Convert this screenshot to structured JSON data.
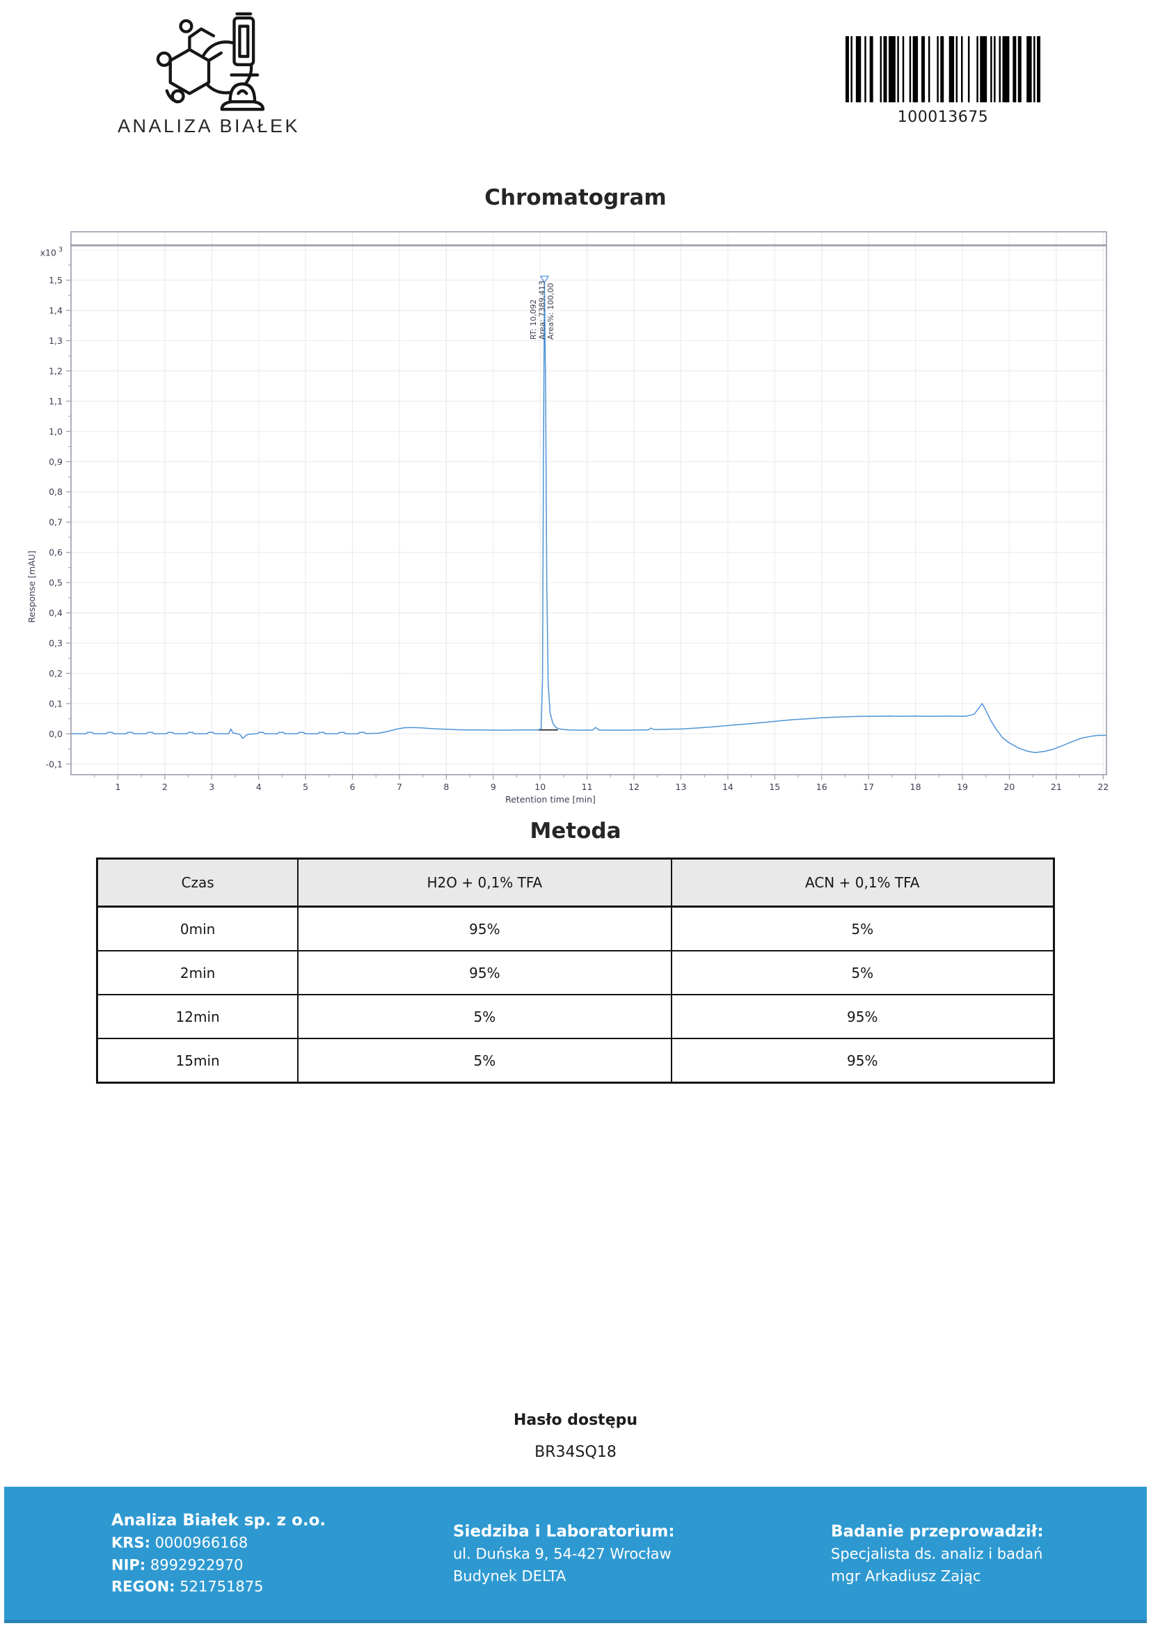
{
  "header": {
    "logo": {
      "brand": "ANALIZA BIAŁEK"
    },
    "barcode": {
      "value": "100013675",
      "bar_color": "#000000",
      "pattern": [
        2,
        1,
        1,
        2,
        3,
        2,
        1,
        2,
        2,
        4,
        1,
        1,
        2,
        1,
        4,
        1,
        1,
        2,
        1,
        3,
        1,
        1,
        3,
        2,
        2,
        2,
        1,
        4,
        1,
        1,
        2,
        3,
        3,
        1,
        1,
        2,
        1,
        3,
        1,
        4,
        1,
        1,
        4,
        2,
        1,
        1,
        1,
        2,
        1,
        1,
        4,
        2,
        2,
        1,
        2,
        3,
        3,
        1,
        1,
        1,
        2
      ]
    }
  },
  "chromatogram_section": {
    "title": "Chromatogram"
  },
  "chart_data": {
    "type": "line",
    "title": "Chromatogram",
    "xlabel": "Retention time [min]",
    "ylabel": "Response [mAU]",
    "scale_label": {
      "prefix": "x10",
      "exponent": "3"
    },
    "xlim": [
      0,
      22.07
    ],
    "ylim": [
      -0.135,
      1.66
    ],
    "x_ticks": [
      1,
      2,
      3,
      4,
      5,
      6,
      7,
      8,
      9,
      10,
      11,
      12,
      13,
      14,
      15,
      16,
      17,
      18,
      19,
      20,
      21,
      22
    ],
    "y_ticks": {
      "values": [
        1.5,
        1.4,
        1.3,
        1.2,
        1.1,
        1.0,
        0.9,
        0.8,
        0.7,
        0.6,
        0.5,
        0.4,
        0.3,
        0.2,
        0.1,
        0.0,
        -0.1
      ],
      "labels": [
        "1,5",
        "1,4",
        "1,3",
        "1,2",
        "1,1",
        "1,0",
        "0,9",
        "0,8",
        "0,7",
        "0,6",
        "0,5",
        "0,4",
        "0,3",
        "0,2",
        "0,1",
        "0,0",
        "-0,1"
      ]
    },
    "grid": true,
    "grid_color": "#ececef",
    "frame_line_y": 1.615,
    "trace_color": "#4e94d8",
    "axis_text_color": "#3d3d52",
    "integration_baseline": {
      "x1": 9.95,
      "x2": 10.38,
      "y": 0.013,
      "color": "#1a1a1a"
    },
    "peak": {
      "apex_x": 10.092,
      "apex_y": 1.49,
      "marker": "open-triangle-down",
      "labels": [
        "RT: 10,092",
        "Area: 7389,413",
        "Area%: 100,00"
      ]
    },
    "series": [
      {
        "name": "signal"
      }
    ],
    "points": [
      [
        0,
        0
      ],
      [
        0.32,
        0
      ],
      [
        0.35,
        0.005
      ],
      [
        0.45,
        0.005
      ],
      [
        0.48,
        0
      ],
      [
        0.75,
        0
      ],
      [
        0.78,
        0.005
      ],
      [
        0.88,
        0.005
      ],
      [
        0.91,
        0
      ],
      [
        1.18,
        0
      ],
      [
        1.21,
        0.005
      ],
      [
        1.31,
        0.005
      ],
      [
        1.34,
        0
      ],
      [
        1.61,
        0
      ],
      [
        1.64,
        0.005
      ],
      [
        1.74,
        0.005
      ],
      [
        1.77,
        0
      ],
      [
        2.04,
        0
      ],
      [
        2.07,
        0.005
      ],
      [
        2.17,
        0.005
      ],
      [
        2.2,
        0
      ],
      [
        2.47,
        0
      ],
      [
        2.5,
        0.005
      ],
      [
        2.6,
        0.005
      ],
      [
        2.63,
        0
      ],
      [
        2.9,
        0
      ],
      [
        2.93,
        0.005
      ],
      [
        3.03,
        0.005
      ],
      [
        3.06,
        0
      ],
      [
        3.36,
        0
      ],
      [
        3.41,
        0.016
      ],
      [
        3.45,
        0.003
      ],
      [
        3.52,
        0.001
      ],
      [
        3.6,
        -0.002
      ],
      [
        3.66,
        -0.015
      ],
      [
        3.74,
        -0.004
      ],
      [
        3.8,
        -0.001
      ],
      [
        3.97,
        0
      ],
      [
        4.0,
        0.005
      ],
      [
        4.1,
        0.005
      ],
      [
        4.13,
        0
      ],
      [
        4.4,
        0
      ],
      [
        4.43,
        0.005
      ],
      [
        4.53,
        0.005
      ],
      [
        4.56,
        0
      ],
      [
        4.83,
        0
      ],
      [
        4.86,
        0.005
      ],
      [
        4.96,
        0.005
      ],
      [
        4.99,
        0
      ],
      [
        5.26,
        0
      ],
      [
        5.29,
        0.005
      ],
      [
        5.39,
        0.005
      ],
      [
        5.42,
        0
      ],
      [
        5.69,
        0
      ],
      [
        5.72,
        0.005
      ],
      [
        5.82,
        0.005
      ],
      [
        5.85,
        0
      ],
      [
        6.12,
        0
      ],
      [
        6.15,
        0.005
      ],
      [
        6.25,
        0.005
      ],
      [
        6.28,
        0.001
      ],
      [
        6.55,
        0.002
      ],
      [
        6.75,
        0.008
      ],
      [
        6.95,
        0.016
      ],
      [
        7.1,
        0.02
      ],
      [
        7.25,
        0.021
      ],
      [
        7.45,
        0.02
      ],
      [
        7.7,
        0.017
      ],
      [
        8.0,
        0.015
      ],
      [
        8.4,
        0.013
      ],
      [
        8.8,
        0.013
      ],
      [
        9.2,
        0.012
      ],
      [
        9.6,
        0.013
      ],
      [
        9.95,
        0.013
      ],
      [
        10.02,
        0.016
      ],
      [
        10.05,
        0.18
      ],
      [
        10.07,
        0.9
      ],
      [
        10.092,
        1.49
      ],
      [
        10.115,
        1.15
      ],
      [
        10.14,
        0.5
      ],
      [
        10.17,
        0.17
      ],
      [
        10.21,
        0.07
      ],
      [
        10.27,
        0.035
      ],
      [
        10.34,
        0.02
      ],
      [
        10.45,
        0.015
      ],
      [
        10.6,
        0.013
      ],
      [
        10.9,
        0.012
      ],
      [
        11.12,
        0.013
      ],
      [
        11.18,
        0.021
      ],
      [
        11.25,
        0.013
      ],
      [
        11.5,
        0.012
      ],
      [
        11.8,
        0.012
      ],
      [
        12.1,
        0.013
      ],
      [
        12.3,
        0.013
      ],
      [
        12.36,
        0.019
      ],
      [
        12.43,
        0.014
      ],
      [
        12.7,
        0.015
      ],
      [
        13.0,
        0.016
      ],
      [
        13.3,
        0.019
      ],
      [
        13.6,
        0.022
      ],
      [
        13.9,
        0.026
      ],
      [
        14.2,
        0.03
      ],
      [
        14.5,
        0.034
      ],
      [
        14.8,
        0.038
      ],
      [
        15.1,
        0.043
      ],
      [
        15.4,
        0.047
      ],
      [
        15.7,
        0.05
      ],
      [
        16.0,
        0.053
      ],
      [
        16.3,
        0.055
      ],
      [
        16.6,
        0.057
      ],
      [
        16.9,
        0.058
      ],
      [
        17.2,
        0.058
      ],
      [
        17.45,
        0.059
      ],
      [
        17.7,
        0.058
      ],
      [
        17.95,
        0.059
      ],
      [
        18.2,
        0.058
      ],
      [
        18.45,
        0.058
      ],
      [
        18.7,
        0.059
      ],
      [
        18.95,
        0.058
      ],
      [
        19.1,
        0.059
      ],
      [
        19.25,
        0.065
      ],
      [
        19.35,
        0.085
      ],
      [
        19.42,
        0.1
      ],
      [
        19.5,
        0.078
      ],
      [
        19.6,
        0.045
      ],
      [
        19.72,
        0.015
      ],
      [
        19.85,
        -0.012
      ],
      [
        20.0,
        -0.03
      ],
      [
        20.2,
        -0.047
      ],
      [
        20.4,
        -0.058
      ],
      [
        20.55,
        -0.062
      ],
      [
        20.75,
        -0.058
      ],
      [
        20.95,
        -0.05
      ],
      [
        21.15,
        -0.038
      ],
      [
        21.35,
        -0.025
      ],
      [
        21.55,
        -0.014
      ],
      [
        21.75,
        -0.008
      ],
      [
        21.9,
        -0.005
      ],
      [
        22.07,
        -0.005
      ]
    ]
  },
  "method_section": {
    "title": "Metoda",
    "table": {
      "header_bg": "#e9e9e9",
      "headers": [
        "Czas",
        "H2O + 0,1% TFA",
        "ACN + 0,1% TFA"
      ],
      "rows": [
        [
          "0min",
          "95%",
          "5%"
        ],
        [
          "2min",
          "95%",
          "5%"
        ],
        [
          "12min",
          "5%",
          "95%"
        ],
        [
          "15min",
          "5%",
          "95%"
        ]
      ]
    }
  },
  "password_section": {
    "label": "Hasło dostępu",
    "value": "BR34SQ18"
  },
  "footer": {
    "bg": "#2e99d1",
    "company": {
      "name": "Analiza Białek sp. z o.o.",
      "krs_label": "KRS:",
      "krs": "0000966168",
      "nip_label": "NIP:",
      "nip": "8992922970",
      "regon_label": "REGON:",
      "regon": "521751875"
    },
    "location": {
      "title": "Siedziba i Laboratorium:",
      "line1": "ul. Duńska 9, 54-427 Wrocław",
      "line2": "Budynek DELTA"
    },
    "examiner": {
      "title": "Badanie przeprowadził:",
      "line1": "Specjalista ds. analiz i badań",
      "line2": "mgr Arkadiusz Zając"
    }
  }
}
